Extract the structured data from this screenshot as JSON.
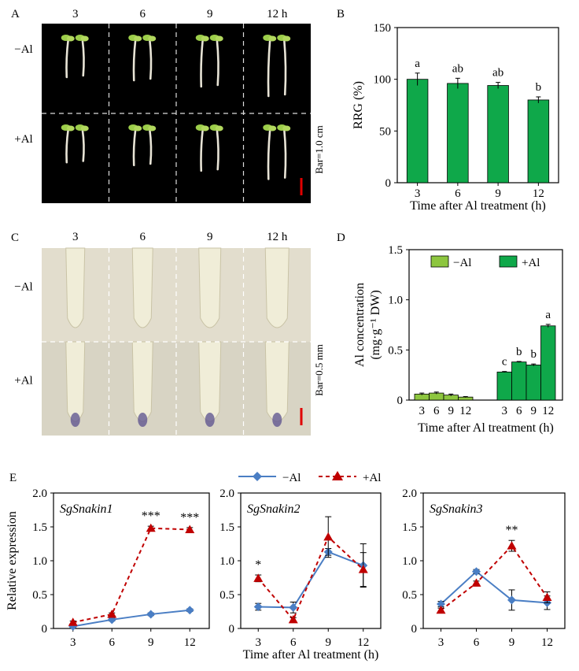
{
  "panel_letters": [
    "A",
    "B",
    "C",
    "D",
    "E"
  ],
  "colors": {
    "bar_green_light": "#8dc63f",
    "bar_green_dark": "#0fa84a",
    "minus_al_blue": "#4a7ec4",
    "plus_al_red": "#c00000",
    "photo_black": "#000000",
    "photo_c_bg": "#d8d4c4",
    "scale_bar_red": "#e00000"
  },
  "panel_a": {
    "time_labels": [
      "3",
      "6",
      "9",
      "12 h"
    ],
    "row_labels": [
      "−Al",
      "+Al"
    ],
    "scale_label": "Bar=1.0 cm"
  },
  "panel_c": {
    "time_labels": [
      "3",
      "6",
      "9",
      "12 h"
    ],
    "row_labels": [
      "−Al",
      "+Al"
    ],
    "scale_label": "Bar=0.5 mm"
  },
  "panel_e_legend": [
    "−Al",
    "+Al"
  ],
  "chart_data": [
    {
      "id": "B",
      "type": "bar",
      "ylabel": "RRG (%)",
      "xlabel": "Time after Al treatment (h)",
      "categories": [
        "3",
        "6",
        "9",
        "12"
      ],
      "values": [
        100,
        96,
        94,
        80
      ],
      "errors": [
        6,
        5,
        3,
        3
      ],
      "labels": [
        "a",
        "ab",
        "ab",
        "b"
      ],
      "ylim": [
        0,
        150
      ],
      "yticks": [
        0,
        50,
        100,
        150
      ],
      "tick_labels": [
        "0",
        "50",
        "100",
        "150"
      ]
    },
    {
      "id": "D",
      "type": "bar",
      "ylabel": "Al concentration (mg·g⁻¹ DW)",
      "xlabel": "Time after Al treatment (h)",
      "categories": [
        "3",
        "6",
        "9",
        "12"
      ],
      "ylim": [
        0,
        1.5
      ],
      "yticks": [
        0,
        0.5,
        1.0,
        1.5
      ],
      "tick_labels": [
        "0",
        "0.5",
        "1.0",
        "1.5"
      ],
      "legend_position": "top",
      "series": [
        {
          "name": "−Al",
          "values": [
            0.06,
            0.07,
            0.05,
            0.03
          ],
          "errors": [
            0.01,
            0.01,
            0.01,
            0.005
          ],
          "labels": []
        },
        {
          "name": "+Al",
          "values": [
            0.28,
            0.38,
            0.35,
            0.74
          ],
          "errors": [
            0.005,
            0.005,
            0.01,
            0.015
          ],
          "labels": [
            "c",
            "b",
            "b",
            "a"
          ]
        }
      ]
    },
    {
      "id": "E1",
      "type": "line",
      "title": "SgSnakin1",
      "ylabel": "Relative expression",
      "categories": [
        "3",
        "6",
        "9",
        "12"
      ],
      "ylim": [
        0,
        2.0
      ],
      "yticks": [
        0,
        0.5,
        1.0,
        1.5,
        2.0
      ],
      "tick_labels": [
        "0",
        "0.5",
        "1.0",
        "1.5",
        "2.0"
      ],
      "series": [
        {
          "name": "−Al",
          "values": [
            0.03,
            0.13,
            0.21,
            0.27
          ],
          "errors": [
            0.02,
            0.02,
            0.02,
            0.02
          ]
        },
        {
          "name": "+Al",
          "values": [
            0.09,
            0.21,
            1.48,
            1.46
          ],
          "errors": [
            0.02,
            0.02,
            0.03,
            0.03
          ]
        }
      ],
      "annotations": [
        {
          "category": "9",
          "text": "***"
        },
        {
          "category": "12",
          "text": "***"
        }
      ]
    },
    {
      "id": "E2",
      "type": "line",
      "title": "SgSnakin2",
      "xlabel": "Time after Al treatment (h)",
      "categories": [
        "3",
        "6",
        "9",
        "12"
      ],
      "ylim": [
        0,
        2.0
      ],
      "yticks": [
        0,
        0.5,
        1.0,
        1.5,
        2.0
      ],
      "tick_labels": [
        "0",
        "0.5",
        "1.0",
        "1.5",
        "2.0"
      ],
      "series": [
        {
          "name": "−Al",
          "values": [
            0.32,
            0.31,
            1.13,
            0.93
          ],
          "errors": [
            0.05,
            0.08,
            0.05,
            0.32
          ]
        },
        {
          "name": "+Al",
          "values": [
            0.74,
            0.13,
            1.35,
            0.87
          ],
          "errors": [
            0.05,
            0.03,
            0.3,
            0.25
          ]
        }
      ],
      "annotations": [
        {
          "category": "3",
          "text": "*"
        }
      ]
    },
    {
      "id": "E3",
      "type": "line",
      "title": "SgSnakin3",
      "categories": [
        "3",
        "6",
        "9",
        "12"
      ],
      "ylim": [
        0,
        2.0
      ],
      "yticks": [
        0,
        0.5,
        1.0,
        1.5,
        2.0
      ],
      "tick_labels": [
        "0",
        "0.5",
        "1.0",
        "1.5",
        "2.0"
      ],
      "series": [
        {
          "name": "−Al",
          "values": [
            0.36,
            0.84,
            0.42,
            0.38
          ],
          "errors": [
            0.04,
            0.03,
            0.15,
            0.1
          ]
        },
        {
          "name": "+Al",
          "values": [
            0.27,
            0.67,
            1.22,
            0.46
          ],
          "errors": [
            0.03,
            0.03,
            0.08,
            0.08
          ]
        }
      ],
      "annotations": [
        {
          "category": "9",
          "text": "**"
        }
      ]
    }
  ]
}
